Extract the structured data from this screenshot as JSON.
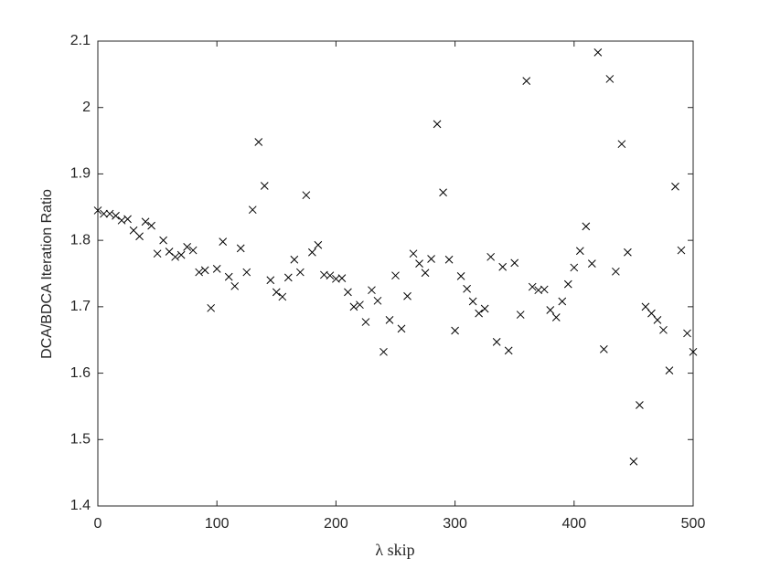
{
  "chart_data": {
    "type": "scatter",
    "xlabel": "λ skip",
    "ylabel": "DCA/BDCA Iteration Ratio",
    "marker": "x",
    "color": "#000000",
    "xlim": [
      0,
      500
    ],
    "xticks": [
      0,
      100,
      200,
      300,
      400,
      500
    ],
    "ylim": [
      1.4,
      2.1
    ],
    "yticks": [
      1.4,
      1.5,
      1.6,
      1.7,
      1.8,
      1.9,
      2,
      2.1
    ],
    "x": [
      0,
      5,
      10,
      15,
      20,
      25,
      30,
      35,
      40,
      45,
      50,
      55,
      60,
      65,
      70,
      75,
      80,
      85,
      90,
      95,
      100,
      105,
      110,
      115,
      120,
      125,
      130,
      135,
      140,
      145,
      150,
      155,
      160,
      165,
      170,
      175,
      180,
      185,
      190,
      195,
      200,
      205,
      210,
      215,
      220,
      225,
      230,
      235,
      240,
      245,
      250,
      255,
      260,
      265,
      270,
      275,
      280,
      285,
      290,
      295,
      300,
      305,
      310,
      315,
      320,
      325,
      330,
      335,
      340,
      345,
      350,
      355,
      360,
      365,
      370,
      375,
      380,
      385,
      390,
      395,
      400,
      405,
      410,
      415,
      420,
      425,
      430,
      435,
      440,
      445,
      450,
      455,
      460,
      465,
      470,
      475,
      480,
      485,
      490,
      495,
      500
    ],
    "values": [
      1.845,
      1.84,
      1.84,
      1.837,
      1.83,
      1.832,
      1.815,
      1.806,
      1.828,
      1.822,
      1.78,
      1.8,
      1.783,
      1.775,
      1.778,
      1.79,
      1.785,
      1.752,
      1.755,
      1.698,
      1.757,
      1.798,
      1.745,
      1.731,
      1.788,
      1.752,
      1.846,
      1.948,
      1.882,
      1.74,
      1.722,
      1.715,
      1.744,
      1.771,
      1.752,
      1.868,
      1.782,
      1.793,
      1.748,
      1.747,
      1.742,
      1.743,
      1.722,
      1.7,
      1.703,
      1.677,
      1.725,
      1.709,
      1.632,
      1.68,
      1.747,
      1.667,
      1.716,
      1.78,
      1.765,
      1.751,
      1.772,
      1.975,
      1.872,
      1.771,
      1.664,
      1.746,
      1.727,
      1.708,
      1.69,
      1.697,
      1.775,
      1.647,
      1.76,
      1.634,
      1.766,
      1.688,
      2.04,
      1.73,
      1.725,
      1.726,
      1.695,
      1.684,
      1.708,
      1.734,
      1.759,
      1.784,
      1.821,
      1.765,
      2.083,
      1.636,
      2.043,
      1.753,
      1.945,
      1.782,
      1.467,
      1.552,
      1.7,
      1.69,
      1.68,
      1.665,
      1.604,
      1.881,
      1.785,
      1.66,
      1.632
    ]
  }
}
